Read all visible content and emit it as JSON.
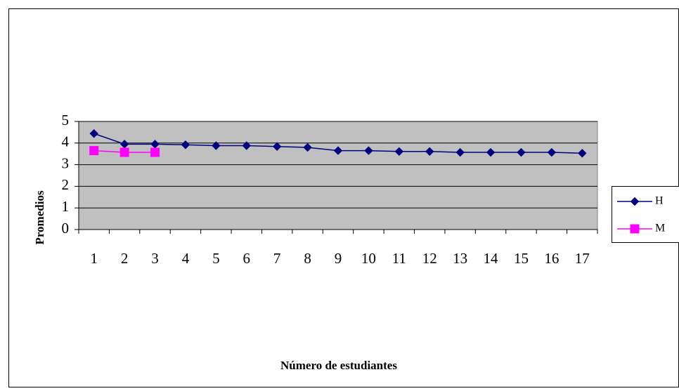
{
  "chart_data": {
    "type": "line",
    "x_label": "Número de estudiantes",
    "y_label": "Promedios",
    "categories": [
      "1",
      "2",
      "3",
      "4",
      "5",
      "6",
      "7",
      "8",
      "9",
      "10",
      "11",
      "12",
      "13",
      "14",
      "15",
      "16",
      "17"
    ],
    "series": [
      {
        "name": "H",
        "color": "#000080",
        "marker": "diamond",
        "values": [
          4.44,
          3.95,
          3.95,
          3.92,
          3.88,
          3.88,
          3.84,
          3.8,
          3.65,
          3.65,
          3.61,
          3.61,
          3.57,
          3.57,
          3.57,
          3.57,
          3.53
        ]
      },
      {
        "name": "M",
        "color": "#ff00ff",
        "marker": "square",
        "values": [
          3.65,
          3.57,
          3.57,
          null,
          null,
          null,
          null,
          null,
          null,
          null,
          null,
          null,
          null,
          null,
          null,
          null,
          null
        ]
      }
    ],
    "ylim": [
      0,
      5
    ],
    "yticks": [
      0,
      1,
      2,
      3,
      4,
      5
    ],
    "grid": true,
    "plot_background": "#c0c0c0",
    "legend": "right"
  }
}
